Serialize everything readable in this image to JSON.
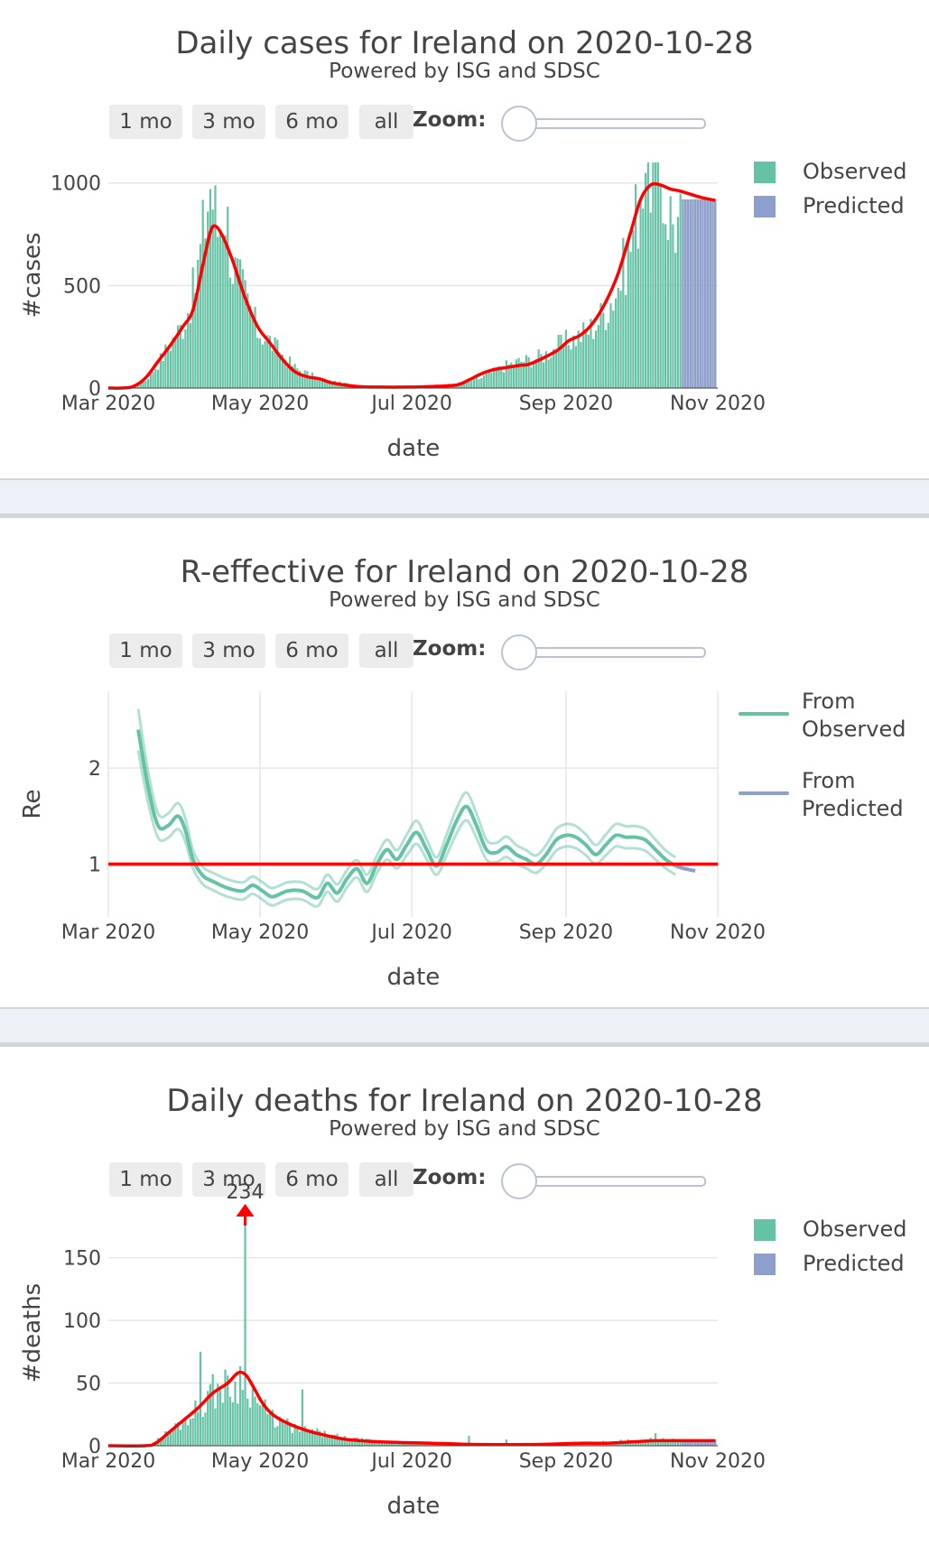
{
  "colors": {
    "observed": "#66c2a5",
    "predicted": "#8da0cb",
    "model": "#ff0000",
    "text": "#444444",
    "grid": "#e6e6e6"
  },
  "range_buttons": [
    "1 mo",
    "3 mo",
    "6 mo",
    "all"
  ],
  "zoom_label": "Zoom:",
  "chart_data": [
    {
      "type": "bar",
      "title": "Daily cases for Ireland on 2020-10-28",
      "subtitle": "Powered by ISG and SDSC",
      "xlabel": "date",
      "ylabel": "#cases",
      "xticks": [
        "Mar 2020",
        "May 2020",
        "Jul 2020",
        "Sep 2020",
        "Nov 2020"
      ],
      "xlim_days": [
        0,
        245
      ],
      "ylim": [
        0,
        1100
      ],
      "yticks": [
        0,
        500,
        1000
      ],
      "legend": [
        "Observed",
        "Predicted"
      ],
      "observed_anchors": [
        [
          0,
          0
        ],
        [
          10,
          10
        ],
        [
          15,
          40
        ],
        [
          20,
          120
        ],
        [
          25,
          220
        ],
        [
          30,
          310
        ],
        [
          35,
          500
        ],
        [
          38,
          750
        ],
        [
          41,
          1000
        ],
        [
          44,
          780
        ],
        [
          47,
          900
        ],
        [
          50,
          600
        ],
        [
          55,
          450
        ],
        [
          60,
          280
        ],
        [
          65,
          230
        ],
        [
          70,
          160
        ],
        [
          75,
          100
        ],
        [
          80,
          70
        ],
        [
          85,
          45
        ],
        [
          90,
          30
        ],
        [
          100,
          15
        ],
        [
          110,
          10
        ],
        [
          120,
          10
        ],
        [
          130,
          12
        ],
        [
          140,
          20
        ],
        [
          150,
          50
        ],
        [
          155,
          80
        ],
        [
          160,
          110
        ],
        [
          165,
          130
        ],
        [
          170,
          140
        ],
        [
          175,
          160
        ],
        [
          180,
          200
        ],
        [
          185,
          230
        ],
        [
          190,
          260
        ],
        [
          195,
          300
        ],
        [
          200,
          380
        ],
        [
          205,
          500
        ],
        [
          210,
          700
        ],
        [
          213,
          900
        ],
        [
          216,
          1150
        ],
        [
          220,
          1080
        ],
        [
          224,
          900
        ],
        [
          228,
          800
        ],
        [
          230,
          800
        ]
      ],
      "predicted_range_days": [
        231,
        244
      ],
      "predicted_value": 920,
      "model_curve": [
        [
          0,
          0
        ],
        [
          5,
          0
        ],
        [
          10,
          8
        ],
        [
          15,
          50
        ],
        [
          20,
          130
        ],
        [
          25,
          210
        ],
        [
          30,
          300
        ],
        [
          34,
          380
        ],
        [
          38,
          600
        ],
        [
          41,
          760
        ],
        [
          43,
          790
        ],
        [
          46,
          740
        ],
        [
          50,
          620
        ],
        [
          55,
          440
        ],
        [
          60,
          300
        ],
        [
          65,
          220
        ],
        [
          70,
          140
        ],
        [
          75,
          80
        ],
        [
          80,
          55
        ],
        [
          85,
          45
        ],
        [
          90,
          25
        ],
        [
          100,
          8
        ],
        [
          110,
          5
        ],
        [
          120,
          5
        ],
        [
          130,
          8
        ],
        [
          140,
          15
        ],
        [
          145,
          40
        ],
        [
          150,
          70
        ],
        [
          155,
          90
        ],
        [
          160,
          100
        ],
        [
          165,
          110
        ],
        [
          170,
          120
        ],
        [
          180,
          180
        ],
        [
          185,
          230
        ],
        [
          190,
          260
        ],
        [
          195,
          320
        ],
        [
          200,
          420
        ],
        [
          205,
          560
        ],
        [
          210,
          760
        ],
        [
          214,
          920
        ],
        [
          218,
          990
        ],
        [
          222,
          990
        ],
        [
          226,
          970
        ],
        [
          230,
          960
        ],
        [
          238,
          930
        ],
        [
          244,
          915
        ]
      ]
    },
    {
      "type": "line",
      "title": "R-effective for Ireland on 2020-10-28",
      "subtitle": "Powered by ISG and SDSC",
      "xlabel": "date",
      "ylabel": "Re",
      "xticks": [
        "Mar 2020",
        "May 2020",
        "Jul 2020",
        "Sep 2020",
        "Nov 2020"
      ],
      "xlim_days": [
        0,
        245
      ],
      "ylim": [
        0.45,
        2.8
      ],
      "yticks": [
        1,
        2
      ],
      "legend": [
        "From Observed",
        "From Predicted"
      ],
      "reference_value": 1.0,
      "re_observed": [
        [
          12,
          2.4
        ],
        [
          16,
          1.8
        ],
        [
          20,
          1.4
        ],
        [
          24,
          1.4
        ],
        [
          28,
          1.5
        ],
        [
          31,
          1.35
        ],
        [
          34,
          1.05
        ],
        [
          38,
          0.88
        ],
        [
          42,
          0.82
        ],
        [
          48,
          0.75
        ],
        [
          54,
          0.72
        ],
        [
          58,
          0.78
        ],
        [
          62,
          0.72
        ],
        [
          66,
          0.66
        ],
        [
          72,
          0.72
        ],
        [
          78,
          0.72
        ],
        [
          84,
          0.65
        ],
        [
          88,
          0.8
        ],
        [
          92,
          0.7
        ],
        [
          96,
          0.85
        ],
        [
          100,
          0.95
        ],
        [
          104,
          0.8
        ],
        [
          108,
          1.0
        ],
        [
          112,
          1.15
        ],
        [
          116,
          1.05
        ],
        [
          120,
          1.2
        ],
        [
          124,
          1.33
        ],
        [
          128,
          1.15
        ],
        [
          132,
          0.98
        ],
        [
          136,
          1.2
        ],
        [
          140,
          1.45
        ],
        [
          144,
          1.6
        ],
        [
          148,
          1.4
        ],
        [
          152,
          1.15
        ],
        [
          156,
          1.12
        ],
        [
          160,
          1.18
        ],
        [
          164,
          1.1
        ],
        [
          168,
          1.05
        ],
        [
          172,
          1.0
        ],
        [
          176,
          1.1
        ],
        [
          180,
          1.25
        ],
        [
          184,
          1.3
        ],
        [
          188,
          1.28
        ],
        [
          192,
          1.2
        ],
        [
          196,
          1.1
        ],
        [
          200,
          1.2
        ],
        [
          204,
          1.3
        ],
        [
          208,
          1.28
        ],
        [
          212,
          1.28
        ],
        [
          216,
          1.25
        ],
        [
          220,
          1.15
        ],
        [
          224,
          1.05
        ],
        [
          228,
          0.98
        ]
      ],
      "re_predicted": [
        [
          228,
          0.98
        ],
        [
          232,
          0.95
        ],
        [
          236,
          0.93
        ]
      ],
      "band_width": 0.15
    },
    {
      "type": "bar",
      "title": "Daily deaths for Ireland on 2020-10-28",
      "subtitle": "Powered by ISG and SDSC",
      "xlabel": "date",
      "ylabel": "#deaths",
      "xticks": [
        "Mar 2020",
        "May 2020",
        "Jul 2020",
        "Sep 2020",
        "Nov 2020"
      ],
      "xlim_days": [
        0,
        245
      ],
      "ylim": [
        0,
        180
      ],
      "yticks": [
        0,
        50,
        100,
        150
      ],
      "legend": [
        "Observed",
        "Predicted"
      ],
      "annotation": {
        "text": "234",
        "day": 55,
        "value": 234
      },
      "observed_anchors": [
        [
          0,
          0
        ],
        [
          15,
          0
        ],
        [
          20,
          5
        ],
        [
          25,
          12
        ],
        [
          30,
          20
        ],
        [
          35,
          28
        ],
        [
          40,
          40
        ],
        [
          45,
          48
        ],
        [
          50,
          45
        ],
        [
          55,
          60
        ],
        [
          58,
          40
        ],
        [
          62,
          30
        ],
        [
          66,
          22
        ],
        [
          70,
          18
        ],
        [
          75,
          14
        ],
        [
          80,
          12
        ],
        [
          85,
          10
        ],
        [
          90,
          8
        ],
        [
          95,
          6
        ],
        [
          100,
          5
        ],
        [
          110,
          3
        ],
        [
          120,
          2
        ],
        [
          130,
          2
        ],
        [
          140,
          2
        ],
        [
          150,
          1
        ],
        [
          160,
          1
        ],
        [
          170,
          1
        ],
        [
          180,
          2
        ],
        [
          190,
          2
        ],
        [
          200,
          3
        ],
        [
          210,
          4
        ],
        [
          220,
          5
        ],
        [
          230,
          4
        ]
      ],
      "spikes": [
        [
          37,
          75
        ],
        [
          55,
          234
        ],
        [
          78,
          45
        ],
        [
          145,
          8
        ],
        [
          160,
          5
        ],
        [
          220,
          10
        ]
      ],
      "predicted_range_days": [
        231,
        244
      ],
      "predicted_value": 5,
      "model_curve": [
        [
          0,
          0
        ],
        [
          15,
          0
        ],
        [
          19,
          2
        ],
        [
          24,
          10
        ],
        [
          30,
          20
        ],
        [
          36,
          30
        ],
        [
          42,
          42
        ],
        [
          48,
          50
        ],
        [
          52,
          58
        ],
        [
          55,
          57
        ],
        [
          58,
          48
        ],
        [
          62,
          34
        ],
        [
          66,
          25
        ],
        [
          72,
          18
        ],
        [
          80,
          12
        ],
        [
          88,
          8
        ],
        [
          96,
          5
        ],
        [
          110,
          3
        ],
        [
          130,
          2
        ],
        [
          150,
          1
        ],
        [
          170,
          1
        ],
        [
          190,
          2
        ],
        [
          200,
          2
        ],
        [
          210,
          3
        ],
        [
          220,
          4
        ],
        [
          230,
          4
        ],
        [
          244,
          4
        ]
      ]
    }
  ]
}
